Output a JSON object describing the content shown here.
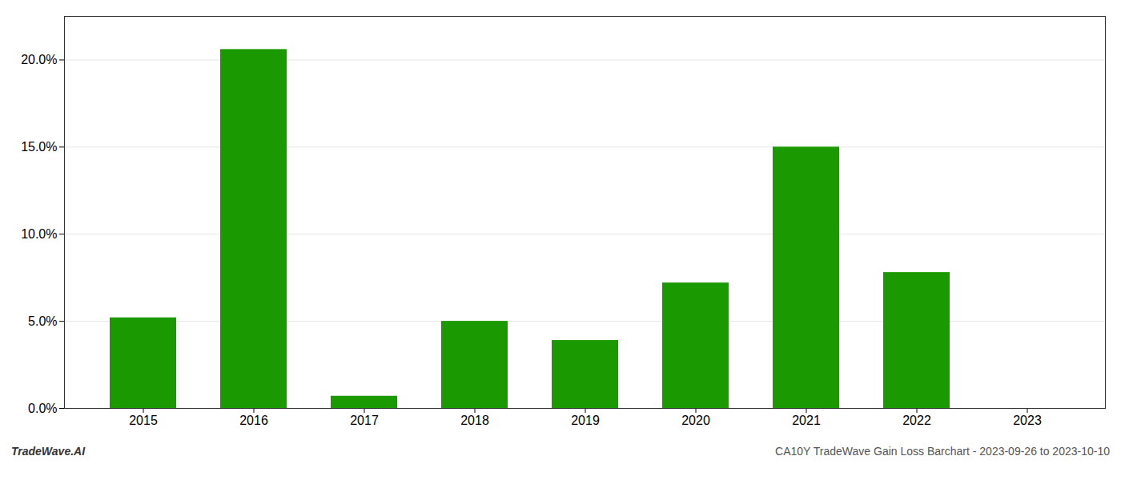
{
  "chart_data": {
    "type": "bar",
    "categories": [
      "2015",
      "2016",
      "2017",
      "2018",
      "2019",
      "2020",
      "2021",
      "2022",
      "2023"
    ],
    "values": [
      0.052,
      0.206,
      0.007,
      0.05,
      0.039,
      0.072,
      0.15,
      0.078,
      0.0
    ],
    "color": "#1a9a00",
    "ylim": [
      0,
      0.225
    ],
    "yticks": [
      {
        "value": 0.0,
        "label": "0.0%"
      },
      {
        "value": 0.05,
        "label": "5.0%"
      },
      {
        "value": 0.1,
        "label": "10.0%"
      },
      {
        "value": 0.15,
        "label": "15.0%"
      },
      {
        "value": 0.2,
        "label": "20.0%"
      }
    ],
    "grid": true,
    "annotations": [
      "TradeWave.AI",
      "CA10Y TradeWave Gain Loss Barchart - 2023-09-26 to 2023-10-10"
    ]
  }
}
